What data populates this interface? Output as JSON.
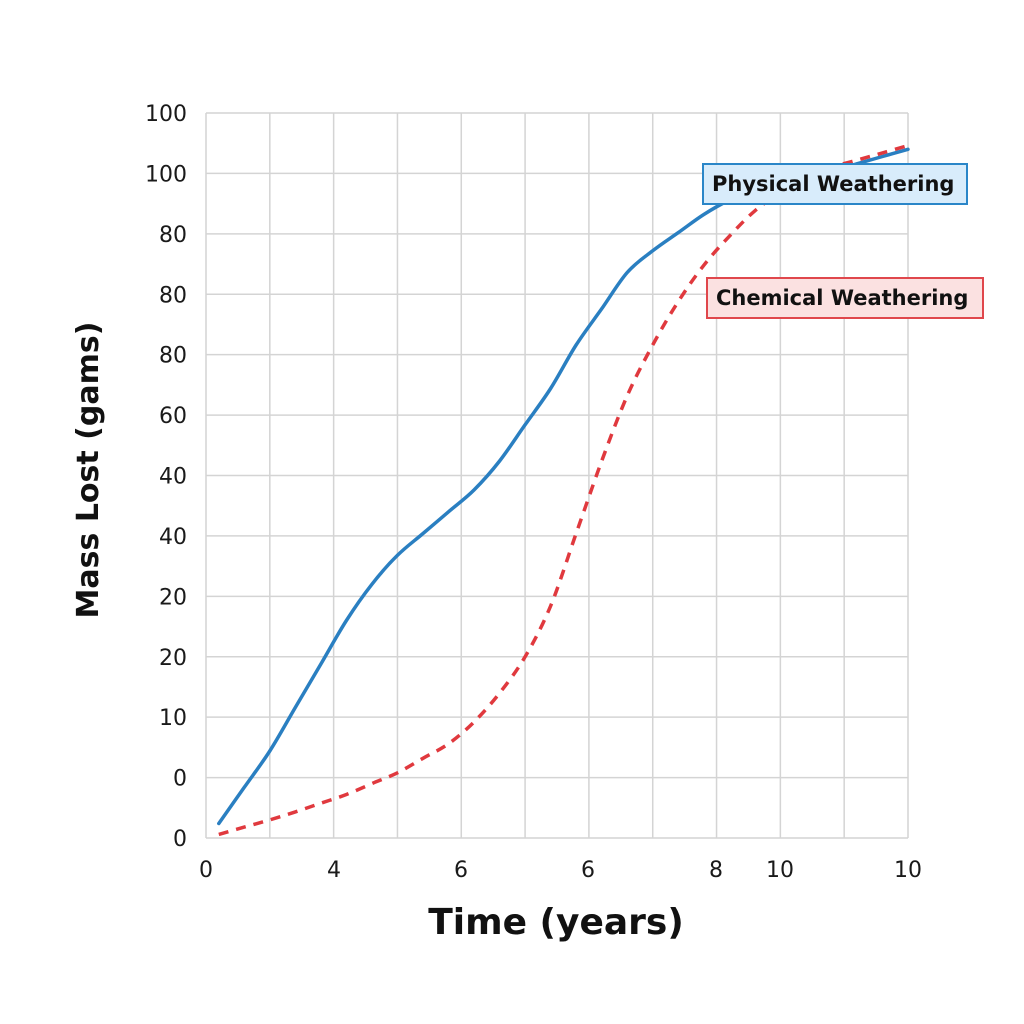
{
  "chart_data": {
    "type": "line",
    "title": "",
    "xlabel": "Time (years)",
    "ylabel": "Mass Lost (gams)",
    "x_ticks": [
      "0",
      "4",
      "6",
      "6",
      "8",
      "10",
      "10"
    ],
    "y_ticks": [
      "100",
      "100",
      "80",
      "80",
      "80",
      "60",
      "40",
      "40",
      "20",
      "20",
      "10",
      "0",
      "0"
    ],
    "grid": true,
    "legend_placement": "labels beside the line ends, upper right",
    "series": [
      {
        "name": "Physical Weathering",
        "color": "#2a7fc1",
        "style": "solid",
        "points": [
          [
            0.2,
            2
          ],
          [
            0.6,
            7
          ],
          [
            1.0,
            12
          ],
          [
            1.4,
            18
          ],
          [
            1.8,
            24
          ],
          [
            2.2,
            30
          ],
          [
            2.6,
            35
          ],
          [
            3.0,
            39
          ],
          [
            3.4,
            42
          ],
          [
            3.8,
            45
          ],
          [
            4.2,
            48
          ],
          [
            4.6,
            52
          ],
          [
            5.0,
            57
          ],
          [
            5.4,
            62
          ],
          [
            5.8,
            68
          ],
          [
            6.2,
            73
          ],
          [
            6.6,
            78
          ],
          [
            7.0,
            81
          ],
          [
            7.4,
            83.5
          ],
          [
            7.8,
            86
          ],
          [
            8.2,
            88
          ],
          [
            8.6,
            89.5
          ],
          [
            9.0,
            90.5
          ],
          [
            9.4,
            91.5
          ],
          [
            9.8,
            92
          ],
          [
            10.2,
            93
          ],
          [
            10.6,
            94
          ],
          [
            11.0,
            95
          ]
        ]
      },
      {
        "name": "Chemical Weathering",
        "color": "#e0393e",
        "style": "dashed",
        "points": [
          [
            0.2,
            0.5
          ],
          [
            0.6,
            1.5
          ],
          [
            1.0,
            2.5
          ],
          [
            1.4,
            3.6
          ],
          [
            1.8,
            4.8
          ],
          [
            2.2,
            6
          ],
          [
            2.6,
            7.5
          ],
          [
            3.0,
            9
          ],
          [
            3.4,
            11
          ],
          [
            3.8,
            13
          ],
          [
            4.2,
            16
          ],
          [
            4.6,
            20
          ],
          [
            5.0,
            25
          ],
          [
            5.4,
            32
          ],
          [
            5.8,
            42
          ],
          [
            6.2,
            52
          ],
          [
            6.6,
            61
          ],
          [
            7.0,
            68
          ],
          [
            7.4,
            74
          ],
          [
            7.8,
            79
          ],
          [
            8.2,
            83
          ],
          [
            8.6,
            86.5
          ],
          [
            9.0,
            89
          ],
          [
            9.4,
            91
          ],
          [
            9.8,
            92.5
          ],
          [
            10.2,
            93.5
          ],
          [
            10.6,
            94.5
          ],
          [
            11.0,
            95.5
          ]
        ]
      }
    ]
  }
}
